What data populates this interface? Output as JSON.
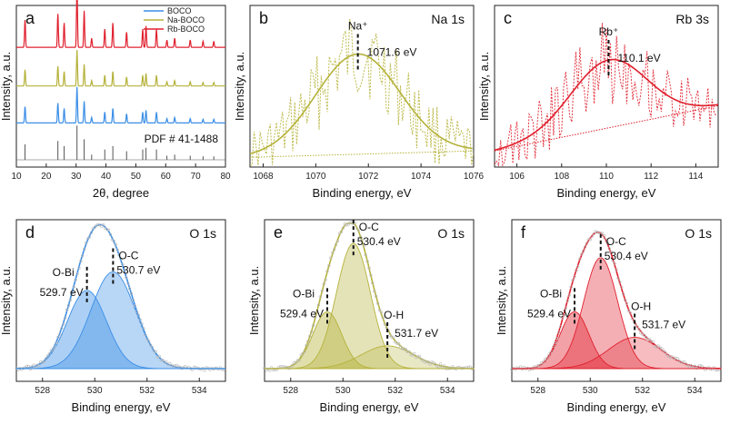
{
  "colors": {
    "blue": "#3a8ee6",
    "gold": "#b5b23a",
    "red": "#e0202e",
    "gray": "#555555"
  },
  "chart_data": [
    {
      "id": "a",
      "type": "line",
      "letter": "a",
      "xlabel": "2θ, degree",
      "ylabel": "Intensity, a.u.",
      "xlim": [
        10,
        80
      ],
      "xticks": [
        10,
        20,
        30,
        40,
        50,
        60,
        70,
        80
      ],
      "legend": [
        "BOCO",
        "Na-BOCO",
        "Rb-BOCO"
      ],
      "legend_position": "top-right",
      "reference_label": "PDF # 41-1488",
      "peaks_2theta": [
        12.9,
        23.9,
        26.0,
        30.3,
        32.7,
        35.2,
        39.6,
        42.3,
        46.9,
        52.3,
        53.4,
        56.9,
        60.4,
        63.0,
        68.2,
        72.5,
        76.1
      ],
      "peak_relative_intensity": [
        0.45,
        0.55,
        0.4,
        1.0,
        0.6,
        0.15,
        0.3,
        0.4,
        0.25,
        0.3,
        0.35,
        0.3,
        0.12,
        0.15,
        0.12,
        0.1,
        0.1
      ],
      "series": [
        {
          "name": "Rb-BOCO",
          "color": "red",
          "offset": 3
        },
        {
          "name": "Na-BOCO",
          "color": "gold",
          "offset": 2
        },
        {
          "name": "BOCO",
          "color": "blue",
          "offset": 1
        },
        {
          "name": "PDF # 41-1488",
          "color": "gray",
          "offset": 0
        }
      ]
    },
    {
      "id": "b",
      "type": "line",
      "letter": "b",
      "title": "Na 1s",
      "xlabel": "Binding energy, eV",
      "ylabel": "Intensity, a.u.",
      "xlim": [
        1067.5,
        1076
      ],
      "xticks": [
        1068,
        1070,
        1072,
        1074,
        1076
      ],
      "series_color": "gold",
      "fit_peak_center": 1071.6,
      "fit_peak_label": "1071.6 eV",
      "species_label": "Na⁺",
      "fit_sigma": 1.6,
      "fit_amplitude": 0.62,
      "baseline": [
        0.06,
        0.1
      ]
    },
    {
      "id": "c",
      "type": "line",
      "letter": "c",
      "title": "Rb 3s",
      "xlabel": "Binding energy, eV",
      "ylabel": "Intensity, a.u.",
      "xlim": [
        105,
        115
      ],
      "xticks": [
        106,
        108,
        110,
        112,
        114
      ],
      "series_color": "red",
      "fit_peak_center": 110.1,
      "fit_peak_label": "110.1 eV",
      "species_label": "Rb⁺",
      "fit_sigma": 1.7,
      "fit_amplitude": 0.42,
      "baseline": [
        0.1,
        0.38
      ]
    },
    {
      "id": "d",
      "type": "line",
      "letter": "d",
      "title": "O 1s",
      "xlabel": "Binding energy, eV",
      "ylabel": "Intensity, a.u.",
      "xlim": [
        527,
        535
      ],
      "xticks": [
        528,
        530,
        532,
        534
      ],
      "series_color": "blue",
      "components": [
        {
          "name": "O-Bi",
          "center": 529.7,
          "label": "529.7 eV",
          "amplitude": 0.55,
          "sigma": 0.75
        },
        {
          "name": "O-C",
          "center": 530.7,
          "label": "530.7 eV",
          "amplitude": 0.68,
          "sigma": 0.85
        }
      ]
    },
    {
      "id": "e",
      "type": "line",
      "letter": "e",
      "title": "O 1s",
      "xlabel": "Binding energy, eV",
      "ylabel": "Intensity, a.u.",
      "xlim": [
        527,
        535
      ],
      "xticks": [
        528,
        530,
        532,
        534
      ],
      "series_color": "gold",
      "components": [
        {
          "name": "O-Bi",
          "center": 529.4,
          "label": "529.4 eV",
          "amplitude": 0.4,
          "sigma": 0.55
        },
        {
          "name": "O-C",
          "center": 530.4,
          "label": "530.4 eV",
          "amplitude": 0.88,
          "sigma": 0.65
        },
        {
          "name": "O-H",
          "center": 531.7,
          "label": "531.7 eV",
          "amplitude": 0.16,
          "sigma": 1.0
        }
      ]
    },
    {
      "id": "f",
      "type": "line",
      "letter": "f",
      "title": "O 1s",
      "xlabel": "Binding energy, eV",
      "ylabel": "Intensity, a.u.",
      "xlim": [
        527,
        535
      ],
      "xticks": [
        528,
        530,
        532,
        534
      ],
      "series_color": "red",
      "components": [
        {
          "name": "O-Bi",
          "center": 529.4,
          "label": "529.4 eV",
          "amplitude": 0.4,
          "sigma": 0.55
        },
        {
          "name": "O-C",
          "center": 530.4,
          "label": "530.4 eV",
          "amplitude": 0.78,
          "sigma": 0.65
        },
        {
          "name": "O-H",
          "center": 531.7,
          "label": "531.7 eV",
          "amplitude": 0.22,
          "sigma": 1.0
        }
      ]
    }
  ]
}
